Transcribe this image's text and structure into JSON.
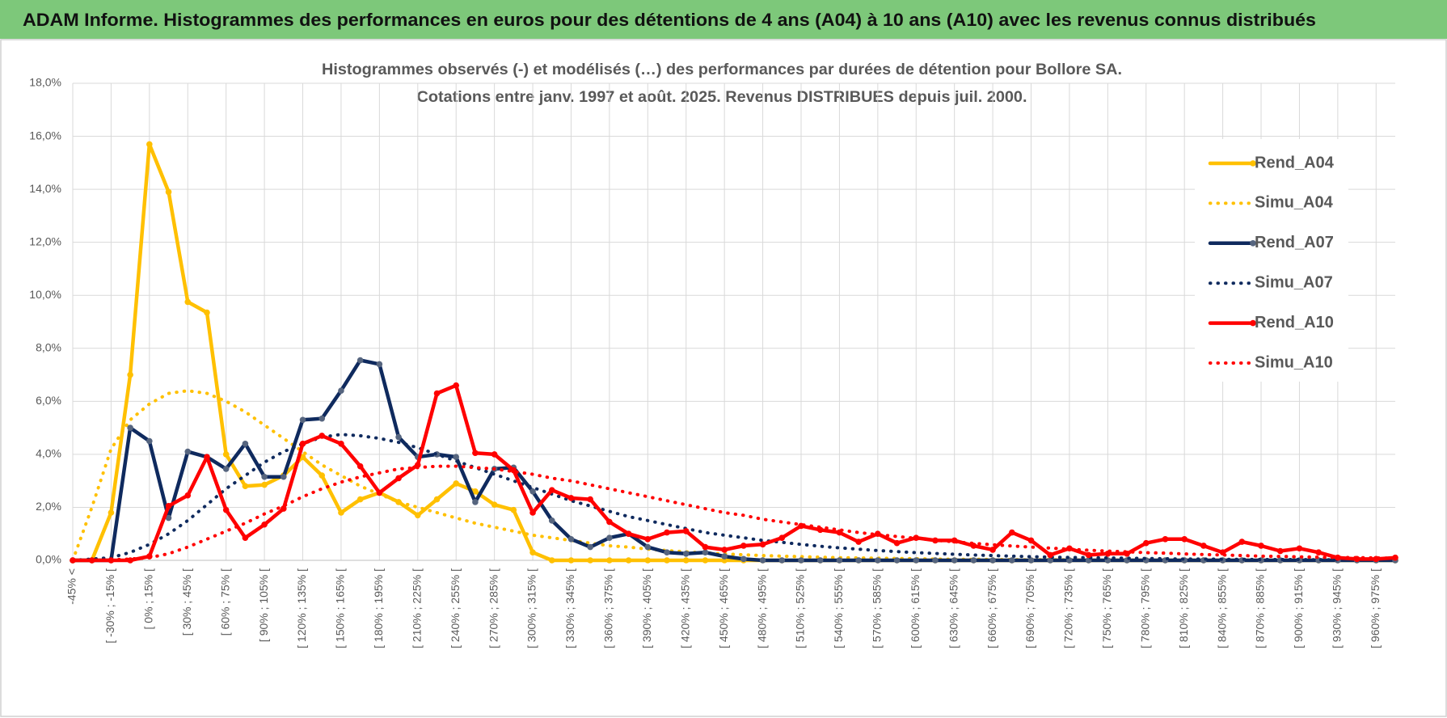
{
  "header": {
    "title": "ADAM Informe. Histogrammes des performances en euros pour des détentions de 4 ans (A04) à 10 ans (A10) avec les revenus connus distribués"
  },
  "chart_data": {
    "type": "line",
    "title": "Histogrammes observés (-) et modélisés (…) des performances par durées de détention pour Bollore SA.",
    "subtitle": "Cotations entre janv. 1997 et août. 2025. Revenus DISTRIBUES depuis juil. 2000.",
    "categories": [
      "-45% <",
      null,
      "[ -30% ; -15% [",
      null,
      "[ 0% ; 15% [",
      null,
      "[ 30% ; 45% [",
      null,
      "[ 60% ; 75% [",
      null,
      "[ 90% ; 105% [",
      null,
      "[ 120% ; 135% [",
      null,
      "[ 150% ; 165% [",
      null,
      "[ 180% ; 195% [",
      null,
      "[ 210% ; 225% [",
      null,
      "[ 240% ; 255% [",
      null,
      "[ 270% ; 285% [",
      null,
      "[ 300% ; 315% [",
      null,
      "[ 330% ; 345% [",
      null,
      "[ 360% ; 375% [",
      null,
      "[ 390% ; 405% [",
      null,
      "[ 420% ; 435% [",
      null,
      "[ 450% ; 465% [",
      null,
      "[ 480% ; 495% [",
      null,
      "[ 510% ; 525% [",
      null,
      "[ 540% ; 555% [",
      null,
      "[ 570% ; 585% [",
      null,
      "[ 600% ; 615% [",
      null,
      "[ 630% ; 645% [",
      null,
      "[ 660% ; 675% [",
      null,
      "[ 690% ; 705% [",
      null,
      "[ 720% ; 735% [",
      null,
      "[ 750% ; 765% [",
      null,
      "[ 780% ; 795% [",
      null,
      "[ 810% ; 825% [",
      null,
      "[ 840% ; 855% [",
      null,
      "[ 870% ; 885% [",
      null,
      "[ 900% ; 915% [",
      null,
      "[ 930% ; 945% [",
      null,
      "[ 960% ; 975% [",
      null
    ],
    "ylim": [
      0,
      18
    ],
    "yticks": [
      {
        "value": 0,
        "label": "0,0%"
      },
      {
        "value": 2,
        "label": "2,0%"
      },
      {
        "value": 4,
        "label": "4,0%"
      },
      {
        "value": 6,
        "label": "6,0%"
      },
      {
        "value": 8,
        "label": "8,0%"
      },
      {
        "value": 10,
        "label": "10,0%"
      },
      {
        "value": 12,
        "label": "12,0%"
      },
      {
        "value": 14,
        "label": "14,0%"
      },
      {
        "value": 16,
        "label": "16,0%"
      },
      {
        "value": 18,
        "label": "18,0%"
      }
    ],
    "grid": true,
    "legend": "right",
    "series": [
      {
        "name": "Rend_A04",
        "color": "#ffc000",
        "style": "solid",
        "marker_color": "#ffc000",
        "values": [
          0,
          0,
          1.8,
          7.0,
          15.7,
          13.9,
          9.75,
          9.35,
          4.0,
          2.8,
          2.85,
          3.2,
          3.9,
          3.2,
          1.8,
          2.3,
          2.55,
          2.2,
          1.7,
          2.3,
          2.9,
          2.6,
          2.1,
          1.9,
          0.3,
          0,
          0,
          0,
          0,
          0,
          0,
          0,
          0,
          0,
          0,
          0,
          0,
          0,
          0,
          0,
          0,
          0,
          0,
          0,
          0,
          0,
          0,
          0,
          0,
          0,
          0,
          0,
          0,
          0,
          0,
          0,
          0,
          0,
          0,
          0,
          0,
          0,
          0,
          0,
          0,
          0,
          0,
          0,
          0,
          0
        ]
      },
      {
        "name": "Simu_A04",
        "color": "#ffc000",
        "style": "dotted",
        "values": [
          0,
          2.0,
          4.2,
          5.3,
          5.9,
          6.3,
          6.4,
          6.3,
          6.0,
          5.6,
          5.1,
          4.6,
          4.1,
          3.6,
          3.2,
          2.8,
          2.5,
          2.2,
          2.0,
          1.8,
          1.6,
          1.4,
          1.25,
          1.1,
          0.95,
          0.85,
          0.75,
          0.65,
          0.55,
          0.5,
          0.42,
          0.37,
          0.32,
          0.28,
          0.24,
          0.21,
          0.18,
          0.16,
          0.14,
          0.12,
          0.1,
          0.09,
          0.08,
          0.07,
          0.06,
          0.05,
          0.04,
          0.04,
          0.03,
          0.03,
          0.02,
          0.02,
          0.02,
          0.01,
          0.01,
          0.01,
          0.01,
          0,
          0,
          0,
          0,
          0,
          0,
          0,
          0,
          0,
          0,
          0,
          0,
          0
        ]
      },
      {
        "name": "Rend_A07",
        "color": "#0f2a5e",
        "style": "solid",
        "marker_color": "#56657f",
        "values": [
          0,
          0,
          0,
          5.0,
          4.5,
          1.6,
          4.1,
          3.9,
          3.45,
          4.4,
          3.15,
          3.15,
          5.3,
          5.35,
          6.4,
          7.55,
          7.4,
          4.65,
          3.9,
          4.0,
          3.9,
          2.2,
          3.45,
          3.5,
          2.6,
          1.5,
          0.8,
          0.5,
          0.85,
          1.0,
          0.5,
          0.3,
          0.25,
          0.3,
          0.15,
          0.05,
          0,
          0,
          0,
          0,
          0,
          0,
          0,
          0,
          0,
          0,
          0,
          0,
          0,
          0,
          0,
          0,
          0,
          0,
          0,
          0,
          0,
          0,
          0,
          0,
          0,
          0,
          0,
          0,
          0,
          0,
          0,
          0,
          0,
          0
        ]
      },
      {
        "name": "Simu_A07",
        "color": "#0f2a5e",
        "style": "dotted",
        "values": [
          0,
          0.05,
          0.1,
          0.3,
          0.6,
          1.0,
          1.5,
          2.1,
          2.7,
          3.2,
          3.7,
          4.1,
          4.4,
          4.65,
          4.75,
          4.7,
          4.6,
          4.45,
          4.25,
          4.0,
          3.75,
          3.5,
          3.25,
          3.0,
          2.75,
          2.5,
          2.25,
          2.05,
          1.85,
          1.65,
          1.5,
          1.35,
          1.2,
          1.05,
          0.95,
          0.85,
          0.75,
          0.68,
          0.6,
          0.53,
          0.47,
          0.42,
          0.37,
          0.33,
          0.29,
          0.26,
          0.23,
          0.2,
          0.18,
          0.16,
          0.14,
          0.12,
          0.11,
          0.1,
          0.09,
          0.08,
          0.07,
          0.06,
          0.05,
          0.05,
          0.04,
          0.04,
          0.03,
          0.03,
          0.03,
          0.02,
          0.02,
          0.02,
          0.02,
          0.01
        ]
      },
      {
        "name": "Rend_A10",
        "color": "#ff0000",
        "style": "solid",
        "marker_color": "#ff0000",
        "values": [
          0,
          0,
          0,
          0,
          0.15,
          2.05,
          2.45,
          3.9,
          1.9,
          0.85,
          1.35,
          1.95,
          4.4,
          4.7,
          4.4,
          3.55,
          2.55,
          3.1,
          3.6,
          6.3,
          6.6,
          4.05,
          4.0,
          3.4,
          1.8,
          2.65,
          2.35,
          2.3,
          1.45,
          1.0,
          0.8,
          1.05,
          1.1,
          0.5,
          0.4,
          0.55,
          0.6,
          0.85,
          1.3,
          1.15,
          1.05,
          0.7,
          1.0,
          0.65,
          0.85,
          0.75,
          0.75,
          0.55,
          0.4,
          1.05,
          0.75,
          0.2,
          0.45,
          0.2,
          0.25,
          0.25,
          0.65,
          0.8,
          0.8,
          0.55,
          0.3,
          0.7,
          0.55,
          0.35,
          0.45,
          0.3,
          0.1,
          0.05,
          0.05,
          0.1
        ]
      },
      {
        "name": "Simu_A10",
        "color": "#ff0000",
        "style": "dotted",
        "values": [
          0,
          0,
          0.02,
          0.05,
          0.1,
          0.25,
          0.5,
          0.8,
          1.1,
          1.4,
          1.75,
          2.05,
          2.4,
          2.7,
          2.95,
          3.15,
          3.3,
          3.45,
          3.5,
          3.55,
          3.55,
          3.5,
          3.45,
          3.35,
          3.25,
          3.1,
          3.0,
          2.85,
          2.7,
          2.55,
          2.4,
          2.25,
          2.1,
          1.95,
          1.8,
          1.7,
          1.55,
          1.45,
          1.35,
          1.25,
          1.15,
          1.05,
          0.97,
          0.9,
          0.83,
          0.76,
          0.7,
          0.64,
          0.59,
          0.54,
          0.5,
          0.46,
          0.42,
          0.38,
          0.35,
          0.32,
          0.29,
          0.27,
          0.24,
          0.22,
          0.2,
          0.18,
          0.16,
          0.15,
          0.13,
          0.12,
          0.11,
          0.1,
          0.09,
          0.08
        ]
      }
    ]
  }
}
